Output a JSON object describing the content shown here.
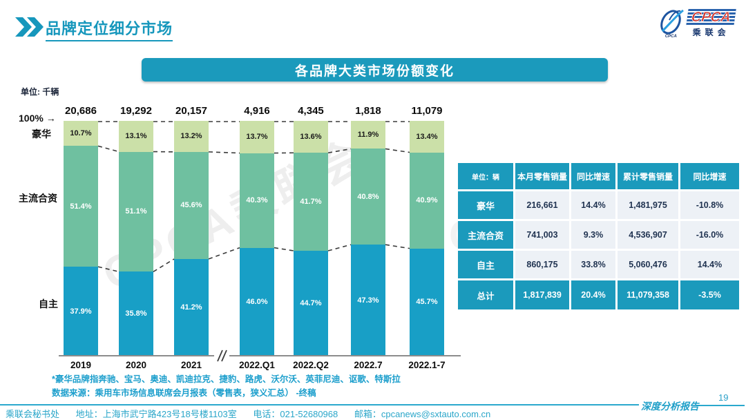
{
  "header": {
    "title": "品牌定位细分市场"
  },
  "logo": {
    "acronym": "CPCA",
    "org": "乘联会",
    "caption": "CPCA"
  },
  "banner": {
    "title": "各品牌大类市场份额变化"
  },
  "chart_data": {
    "type": "bar",
    "stacked": true,
    "title": "各品牌大类市场份额变化",
    "unit_label": "单位: 千辆",
    "axis_note": "100% →",
    "ylim": [
      0,
      100
    ],
    "grid": false,
    "axis_break_between": [
      "2021",
      "2022.Q1"
    ],
    "categories": [
      "2019",
      "2020",
      "2021",
      "2022.Q1",
      "2022.Q2",
      "2022.7",
      "2022.1-7"
    ],
    "totals": [
      "20,686",
      "19,292",
      "20,157",
      "4,916",
      "4,345",
      "1,818",
      "11,079"
    ],
    "series": [
      {
        "name": "豪华",
        "color": "#cbe0a8",
        "label_color": "#1a1a1a",
        "values": [
          10.7,
          13.1,
          13.2,
          13.7,
          13.6,
          11.9,
          13.4
        ],
        "labels": [
          "10.7%",
          "13.1%",
          "13.2%",
          "13.7%",
          "13.6%",
          "11.9%",
          "13.4%"
        ]
      },
      {
        "name": "主流合资",
        "color": "#6fc0a0",
        "label_color": "#ffffff",
        "values": [
          51.4,
          51.1,
          45.6,
          40.3,
          41.7,
          40.8,
          40.9
        ],
        "labels": [
          "51.4%",
          "51.1%",
          "45.6%",
          "40.3%",
          "41.7%",
          "40.8%",
          "40.9%"
        ]
      },
      {
        "name": "自主",
        "color": "#189fc6",
        "label_color": "#ffffff",
        "values": [
          37.9,
          35.8,
          41.2,
          46.0,
          44.7,
          47.3,
          45.7
        ],
        "labels": [
          "37.9%",
          "35.8%",
          "41.2%",
          "46.0%",
          "44.7%",
          "47.3%",
          "45.7%"
        ]
      }
    ]
  },
  "table": {
    "header": [
      "单位：辆",
      "本月零售销量",
      "同比增速",
      "累计零售销量",
      "同比增速"
    ],
    "rows": [
      [
        "豪华",
        "216,661",
        "14.4%",
        "1,481,975",
        "-10.8%"
      ],
      [
        "主流合资",
        "741,003",
        "9.3%",
        "4,536,907",
        "-16.0%"
      ],
      [
        "自主",
        "860,175",
        "33.8%",
        "5,060,476",
        "14.4%"
      ],
      [
        "总计",
        "1,817,839",
        "20.4%",
        "11,079,358",
        "-3.5%"
      ]
    ]
  },
  "footnotes": [
    "*豪华品牌指奔驰、宝马、奥迪、凯迪拉克、捷豹、路虎、沃尔沃、英菲尼迪、讴歌、特斯拉",
    "数据来源：乘用车市场信息联席会月报表（零售表，狭义汇总）  -终稿"
  ],
  "watermark": "CPCA乘联会",
  "footer": {
    "items": [
      "乘联会秘书处",
      "地址：上海市武宁路423号18号楼1103室",
      "电话：021-52680968",
      "邮箱：cpcanews@sxtauto.com.cn"
    ],
    "report": "深度分析报告",
    "page": "19"
  }
}
